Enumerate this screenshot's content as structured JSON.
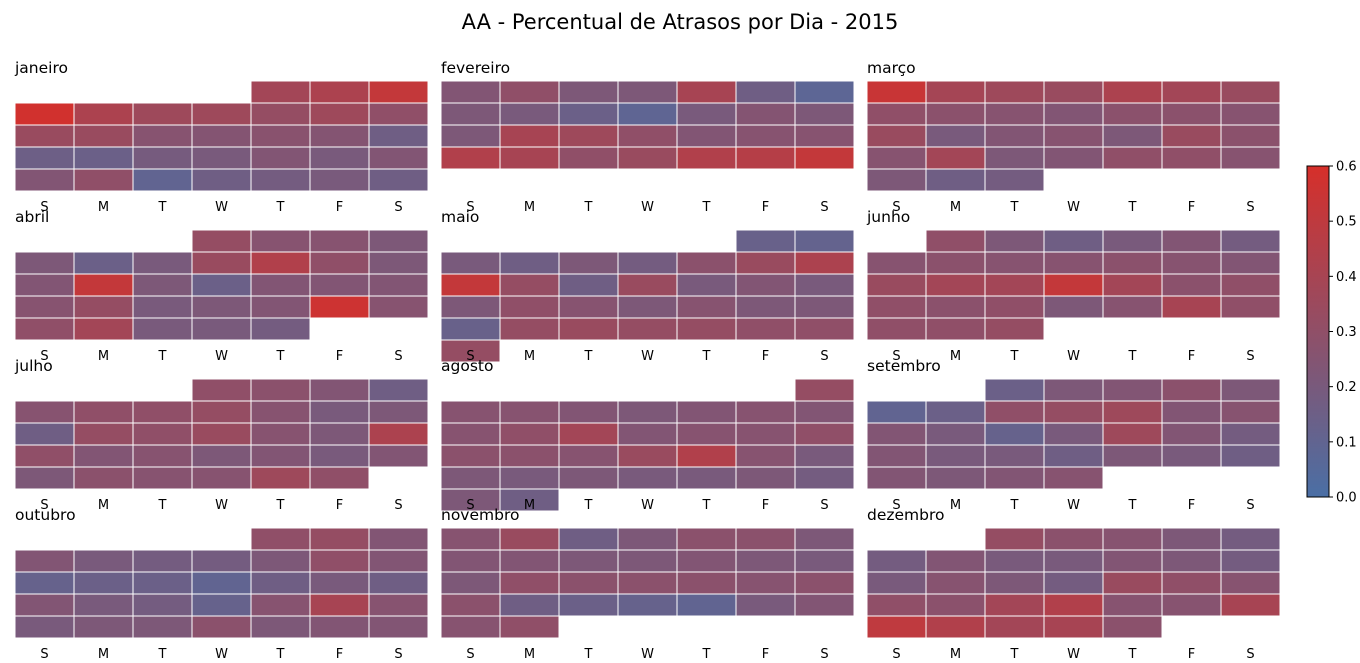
{
  "chart_data": {
    "type": "heatmap",
    "title": "AA - Percentual de Atrasos por Dia - 2015",
    "weekday_labels": [
      "S",
      "M",
      "T",
      "W",
      "T",
      "F",
      "S"
    ],
    "colorbar": {
      "range": [
        0.0,
        0.6
      ],
      "ticks": [
        "0.0",
        "0.1",
        "0.2",
        "0.3",
        "0.4",
        "0.5",
        "0.6"
      ],
      "colors": [
        "#4a6fa5",
        "#d62f2a"
      ]
    },
    "months": [
      {
        "name": "janeiro",
        "rows": [
          [
            null,
            null,
            null,
            null,
            0.38,
            0.42,
            0.52
          ],
          [
            0.58,
            0.42,
            0.36,
            0.36,
            0.32,
            0.36,
            0.3
          ],
          [
            0.34,
            0.34,
            0.26,
            0.25,
            0.27,
            0.25,
            0.16
          ],
          [
            0.15,
            0.14,
            0.19,
            0.2,
            0.24,
            0.2,
            0.24
          ],
          [
            0.24,
            0.3,
            0.1,
            0.16,
            0.18,
            0.2,
            0.16
          ]
        ]
      },
      {
        "name": "fevereiro",
        "rows": [
          [
            0.24,
            0.3,
            0.22,
            0.22,
            0.4,
            0.16,
            0.08
          ],
          [
            0.22,
            0.2,
            0.14,
            0.09,
            0.2,
            0.25,
            0.22
          ],
          [
            0.22,
            0.4,
            0.36,
            0.3,
            0.24,
            0.26,
            0.26
          ],
          [
            0.44,
            0.4,
            0.3,
            0.34,
            0.44,
            0.46,
            0.52
          ]
        ]
      },
      {
        "name": "março",
        "rows": [
          [
            0.54,
            0.39,
            0.36,
            0.34,
            0.42,
            0.38,
            0.34
          ],
          [
            0.3,
            0.28,
            0.26,
            0.24,
            0.28,
            0.28,
            0.26
          ],
          [
            0.34,
            0.2,
            0.24,
            0.26,
            0.22,
            0.34,
            0.28
          ],
          [
            0.26,
            0.38,
            0.22,
            0.24,
            0.3,
            0.3,
            0.26
          ],
          [
            0.22,
            0.16,
            0.18,
            null,
            null,
            null,
            null
          ]
        ]
      },
      {
        "name": "abril",
        "rows": [
          [
            null,
            null,
            null,
            0.32,
            0.26,
            0.26,
            0.22
          ],
          [
            0.22,
            0.14,
            0.2,
            0.34,
            0.44,
            0.3,
            0.22
          ],
          [
            0.24,
            0.52,
            0.22,
            0.14,
            0.24,
            0.24,
            0.24
          ],
          [
            0.26,
            0.32,
            0.2,
            0.22,
            0.24,
            0.56,
            0.26
          ],
          [
            0.3,
            0.38,
            0.2,
            0.2,
            0.18,
            null,
            null
          ]
        ]
      },
      {
        "name": "maio",
        "rows": [
          [
            null,
            null,
            null,
            null,
            null,
            0.13,
            0.11
          ],
          [
            0.2,
            0.16,
            0.22,
            0.18,
            0.28,
            0.34,
            0.42
          ],
          [
            0.52,
            0.32,
            0.16,
            0.34,
            0.2,
            0.24,
            0.2
          ],
          [
            0.22,
            0.3,
            0.26,
            0.22,
            0.26,
            0.22,
            0.22
          ],
          [
            0.13,
            0.32,
            0.34,
            0.32,
            0.32,
            0.3,
            0.3
          ],
          [
            0.32,
            null,
            null,
            null,
            null,
            null,
            null
          ]
        ]
      },
      {
        "name": "junho",
        "rows": [
          [
            null,
            0.3,
            0.22,
            0.16,
            0.2,
            0.24,
            0.18
          ],
          [
            0.26,
            0.28,
            0.26,
            0.26,
            0.28,
            0.26,
            0.24
          ],
          [
            0.34,
            0.38,
            0.38,
            0.52,
            0.38,
            0.28,
            0.3
          ],
          [
            0.3,
            0.28,
            0.3,
            0.22,
            0.26,
            0.4,
            0.3
          ],
          [
            0.3,
            0.3,
            0.32,
            null,
            null,
            null,
            null
          ]
        ]
      },
      {
        "name": "julho",
        "rows": [
          [
            null,
            null,
            null,
            0.3,
            0.28,
            0.24,
            0.16
          ],
          [
            0.26,
            0.3,
            0.3,
            0.32,
            0.26,
            0.2,
            0.22
          ],
          [
            0.16,
            0.32,
            0.3,
            0.34,
            0.26,
            0.22,
            0.42
          ],
          [
            0.3,
            0.24,
            0.26,
            0.22,
            0.24,
            0.2,
            0.24
          ],
          [
            0.22,
            0.28,
            0.26,
            0.26,
            0.36,
            0.3,
            null
          ]
        ]
      },
      {
        "name": "agosto",
        "rows": [
          [
            null,
            null,
            null,
            null,
            null,
            null,
            0.32
          ],
          [
            0.26,
            0.26,
            0.24,
            0.22,
            0.24,
            0.26,
            0.24
          ],
          [
            0.26,
            0.3,
            0.38,
            0.24,
            0.26,
            0.26,
            0.3
          ],
          [
            0.28,
            0.28,
            0.26,
            0.34,
            0.44,
            0.26,
            0.2
          ],
          [
            0.22,
            0.2,
            0.22,
            0.2,
            0.2,
            0.22,
            0.18
          ],
          [
            0.22,
            0.16,
            null,
            null,
            null,
            null,
            null
          ]
        ]
      },
      {
        "name": "setembro",
        "rows": [
          [
            null,
            null,
            0.14,
            0.22,
            0.24,
            0.28,
            0.22
          ],
          [
            0.1,
            0.14,
            0.3,
            0.32,
            0.36,
            0.24,
            0.26
          ],
          [
            0.24,
            0.2,
            0.12,
            0.2,
            0.36,
            0.24,
            0.18
          ],
          [
            0.24,
            0.2,
            0.2,
            0.16,
            0.22,
            0.2,
            0.16
          ],
          [
            0.24,
            0.22,
            0.24,
            0.26,
            null,
            null,
            null
          ]
        ]
      },
      {
        "name": "outubro",
        "rows": [
          [
            null,
            null,
            null,
            null,
            0.3,
            0.32,
            0.24
          ],
          [
            0.24,
            0.2,
            0.18,
            0.18,
            0.22,
            0.3,
            0.24
          ],
          [
            0.12,
            0.14,
            0.14,
            0.1,
            0.16,
            0.2,
            0.16
          ],
          [
            0.24,
            0.2,
            0.18,
            0.12,
            0.26,
            0.4,
            0.26
          ],
          [
            0.2,
            0.22,
            0.22,
            0.28,
            0.22,
            0.24,
            0.24
          ]
        ]
      },
      {
        "name": "novembro",
        "rows": [
          [
            0.26,
            0.34,
            0.16,
            0.22,
            0.28,
            0.28,
            0.22
          ],
          [
            0.24,
            0.24,
            0.22,
            0.22,
            0.24,
            0.22,
            0.2
          ],
          [
            0.22,
            0.3,
            0.28,
            0.28,
            0.28,
            0.26,
            0.28
          ],
          [
            0.28,
            0.16,
            0.14,
            0.12,
            0.1,
            0.2,
            0.24
          ],
          [
            0.26,
            0.3,
            null,
            null,
            null,
            null,
            null
          ]
        ]
      },
      {
        "name": "dezembro",
        "rows": [
          [
            null,
            null,
            0.32,
            0.28,
            0.26,
            0.22,
            0.18
          ],
          [
            0.18,
            0.24,
            0.2,
            0.2,
            0.24,
            0.22,
            0.18
          ],
          [
            0.2,
            0.26,
            0.22,
            0.18,
            0.34,
            0.3,
            0.26
          ],
          [
            0.3,
            0.28,
            0.38,
            0.44,
            0.26,
            0.26,
            0.4
          ],
          [
            0.5,
            0.44,
            0.38,
            0.4,
            0.28,
            null,
            null
          ]
        ]
      }
    ]
  }
}
